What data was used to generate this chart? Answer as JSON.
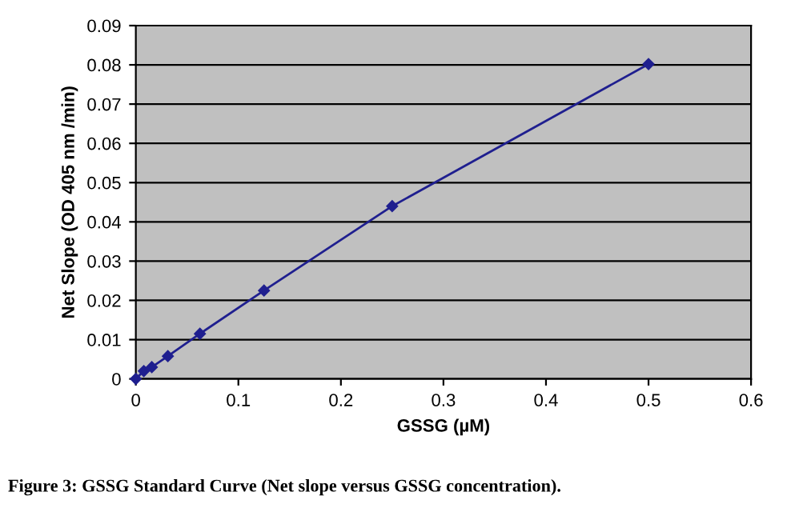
{
  "chart_data": {
    "type": "line",
    "xlabel": "GSSG (µM)",
    "ylabel": "Net Slope (OD 405 nm /min)",
    "annotations": [
      "Figure 3: GSSG Standard Curve (Net slope versus GSSG concentration)."
    ],
    "x": [
      0,
      0.0078,
      0.0156,
      0.03125,
      0.0625,
      0.125,
      0.25,
      0.5
    ],
    "series": [
      {
        "color": "#1f1f8f",
        "values": [
          0,
          0.002,
          0.003,
          0.0058,
          0.0115,
          0.0225,
          0.044,
          0.0802
        ]
      }
    ],
    "xlim": [
      0,
      0.6
    ],
    "xticks": [
      0,
      0.1,
      0.2,
      0.3,
      0.4,
      0.5,
      0.6
    ],
    "ylim": [
      0,
      0.09
    ],
    "yticks": [
      0,
      0.01,
      0.02,
      0.03,
      0.04,
      0.05,
      0.06,
      0.07,
      0.08,
      0.09
    ],
    "grid": "y",
    "marker": "diamond",
    "line_style": "solid",
    "legend": false
  }
}
